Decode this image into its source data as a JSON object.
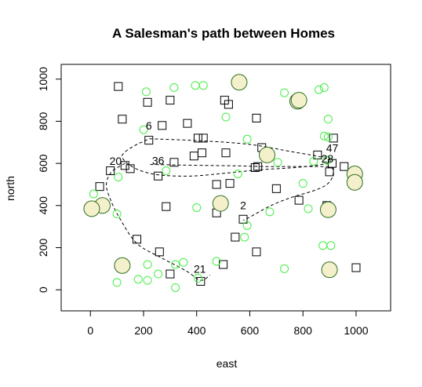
{
  "chart_data": {
    "type": "scatter",
    "title": "A Salesman's path between Homes",
    "xlabel": "east",
    "ylabel": "north",
    "xlim": [
      -110,
      1130
    ],
    "ylim": [
      -100,
      1070
    ],
    "xticks": [
      0,
      200,
      400,
      600,
      800,
      1000
    ],
    "yticks": [
      0,
      200,
      400,
      600,
      800,
      1000
    ],
    "colors": {
      "square": "#000000",
      "green_circle": "#44ee44",
      "big_circle_fill": "#f5f0cc",
      "big_circle_stroke": "#2a6e1e",
      "path": "#000000"
    },
    "squares": [
      {
        "x": 105,
        "y": 965
      },
      {
        "x": 215,
        "y": 890
      },
      {
        "x": 300,
        "y": 900
      },
      {
        "x": 505,
        "y": 900
      },
      {
        "x": 520,
        "y": 880
      },
      {
        "x": 120,
        "y": 810
      },
      {
        "x": 270,
        "y": 780
      },
      {
        "x": 365,
        "y": 790
      },
      {
        "x": 625,
        "y": 815
      },
      {
        "x": 220,
        "y": 710
      },
      {
        "x": 405,
        "y": 720
      },
      {
        "x": 425,
        "y": 720
      },
      {
        "x": 645,
        "y": 675
      },
      {
        "x": 390,
        "y": 635
      },
      {
        "x": 420,
        "y": 650
      },
      {
        "x": 510,
        "y": 650
      },
      {
        "x": 315,
        "y": 605
      },
      {
        "x": 855,
        "y": 640
      },
      {
        "x": 915,
        "y": 720
      },
      {
        "x": 75,
        "y": 565
      },
      {
        "x": 130,
        "y": 590
      },
      {
        "x": 150,
        "y": 575
      },
      {
        "x": 255,
        "y": 540
      },
      {
        "x": 620,
        "y": 580
      },
      {
        "x": 630,
        "y": 585
      },
      {
        "x": 900,
        "y": 560
      },
      {
        "x": 910,
        "y": 600
      },
      {
        "x": 955,
        "y": 585
      },
      {
        "x": 35,
        "y": 490
      },
      {
        "x": 475,
        "y": 500
      },
      {
        "x": 525,
        "y": 505
      },
      {
        "x": 700,
        "y": 480
      },
      {
        "x": 285,
        "y": 395
      },
      {
        "x": 475,
        "y": 365
      },
      {
        "x": 575,
        "y": 335
      },
      {
        "x": 785,
        "y": 425
      },
      {
        "x": 890,
        "y": 400
      },
      {
        "x": 175,
        "y": 240
      },
      {
        "x": 545,
        "y": 250
      },
      {
        "x": 260,
        "y": 180
      },
      {
        "x": 625,
        "y": 180
      },
      {
        "x": 300,
        "y": 75
      },
      {
        "x": 500,
        "y": 120
      },
      {
        "x": 415,
        "y": 40
      },
      {
        "x": 1000,
        "y": 105
      }
    ],
    "green_circles": [
      {
        "x": 210,
        "y": 940
      },
      {
        "x": 315,
        "y": 960
      },
      {
        "x": 395,
        "y": 970
      },
      {
        "x": 425,
        "y": 970
      },
      {
        "x": 730,
        "y": 935
      },
      {
        "x": 860,
        "y": 950
      },
      {
        "x": 880,
        "y": 960
      },
      {
        "x": 510,
        "y": 820
      },
      {
        "x": 895,
        "y": 810
      },
      {
        "x": 200,
        "y": 760
      },
      {
        "x": 590,
        "y": 715
      },
      {
        "x": 880,
        "y": 730
      },
      {
        "x": 705,
        "y": 605
      },
      {
        "x": 840,
        "y": 610
      },
      {
        "x": 890,
        "y": 615
      },
      {
        "x": 285,
        "y": 565
      },
      {
        "x": 555,
        "y": 550
      },
      {
        "x": 105,
        "y": 535
      },
      {
        "x": 12,
        "y": 455
      },
      {
        "x": 800,
        "y": 505
      },
      {
        "x": 985,
        "y": 500
      },
      {
        "x": 400,
        "y": 390
      },
      {
        "x": 820,
        "y": 385
      },
      {
        "x": 100,
        "y": 360
      },
      {
        "x": 675,
        "y": 370
      },
      {
        "x": 590,
        "y": 305
      },
      {
        "x": 580,
        "y": 250
      },
      {
        "x": 905,
        "y": 210
      },
      {
        "x": 875,
        "y": 210
      },
      {
        "x": 350,
        "y": 130
      },
      {
        "x": 475,
        "y": 135
      },
      {
        "x": 215,
        "y": 120
      },
      {
        "x": 320,
        "y": 120
      },
      {
        "x": 730,
        "y": 100
      },
      {
        "x": 180,
        "y": 50
      },
      {
        "x": 215,
        "y": 45
      },
      {
        "x": 255,
        "y": 75
      },
      {
        "x": 320,
        "y": 10
      },
      {
        "x": 100,
        "y": 35
      },
      {
        "x": 890,
        "y": 105
      },
      {
        "x": 895,
        "y": 725
      },
      {
        "x": 405,
        "y": 55
      }
    ],
    "big_circles": [
      {
        "x": 560,
        "y": 985
      },
      {
        "x": 780,
        "y": 895
      },
      {
        "x": 785,
        "y": 900
      },
      {
        "x": 665,
        "y": 640
      },
      {
        "x": 995,
        "y": 550
      },
      {
        "x": 995,
        "y": 510
      },
      {
        "x": 45,
        "y": 400
      },
      {
        "x": 5,
        "y": 385
      },
      {
        "x": 490,
        "y": 410
      },
      {
        "x": 895,
        "y": 380
      },
      {
        "x": 120,
        "y": 115
      },
      {
        "x": 900,
        "y": 95
      }
    ],
    "path": [
      {
        "x": 222,
        "y": 717
      },
      {
        "x": 420,
        "y": 707
      },
      {
        "x": 600,
        "y": 690
      },
      {
        "x": 760,
        "y": 655
      },
      {
        "x": 870,
        "y": 630
      },
      {
        "x": 905,
        "y": 610
      },
      {
        "x": 870,
        "y": 595
      },
      {
        "x": 770,
        "y": 580
      },
      {
        "x": 640,
        "y": 570
      },
      {
        "x": 520,
        "y": 555
      },
      {
        "x": 380,
        "y": 540
      },
      {
        "x": 260,
        "y": 545
      },
      {
        "x": 190,
        "y": 565
      },
      {
        "x": 150,
        "y": 590
      },
      {
        "x": 130,
        "y": 610
      },
      {
        "x": 120,
        "y": 640
      },
      {
        "x": 160,
        "y": 680
      },
      {
        "x": 222,
        "y": 717
      }
    ],
    "path2": [
      {
        "x": 130,
        "y": 600
      },
      {
        "x": 80,
        "y": 560
      },
      {
        "x": 60,
        "y": 500
      },
      {
        "x": 75,
        "y": 430
      },
      {
        "x": 110,
        "y": 340
      },
      {
        "x": 175,
        "y": 220
      },
      {
        "x": 270,
        "y": 150
      },
      {
        "x": 360,
        "y": 90
      },
      {
        "x": 415,
        "y": 45
      },
      {
        "x": 450,
        "y": 70
      }
    ],
    "path3": [
      {
        "x": 225,
        "y": 595
      },
      {
        "x": 340,
        "y": 592
      },
      {
        "x": 460,
        "y": 590
      },
      {
        "x": 560,
        "y": 588
      },
      {
        "x": 650,
        "y": 585
      },
      {
        "x": 760,
        "y": 585
      },
      {
        "x": 860,
        "y": 585
      },
      {
        "x": 908,
        "y": 580
      },
      {
        "x": 912,
        "y": 540
      },
      {
        "x": 890,
        "y": 500
      },
      {
        "x": 840,
        "y": 470
      },
      {
        "x": 760,
        "y": 440
      },
      {
        "x": 680,
        "y": 400
      },
      {
        "x": 600,
        "y": 345
      },
      {
        "x": 575,
        "y": 330
      }
    ],
    "labels": [
      {
        "text": "6",
        "x": 220,
        "y": 760
      },
      {
        "text": "47",
        "x": 910,
        "y": 655
      },
      {
        "text": "28",
        "x": 892,
        "y": 605
      },
      {
        "text": "20",
        "x": 95,
        "y": 593
      },
      {
        "text": "36",
        "x": 255,
        "y": 595
      },
      {
        "text": "2",
        "x": 575,
        "y": 382
      },
      {
        "text": "21",
        "x": 412,
        "y": 80
      }
    ]
  }
}
